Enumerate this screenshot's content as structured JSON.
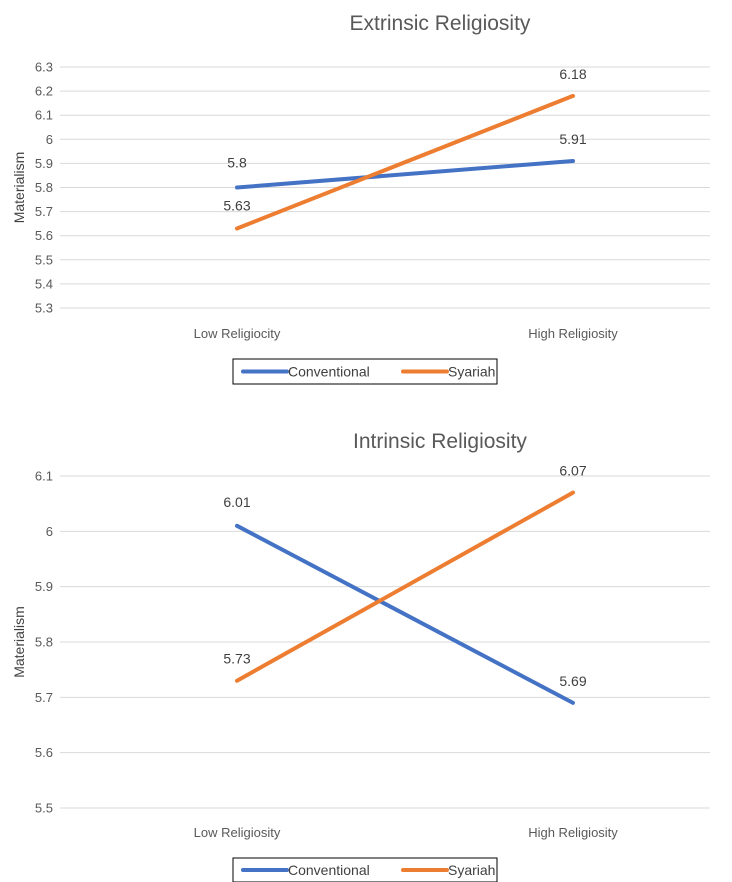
{
  "chart_data": [
    {
      "type": "line",
      "title": "Extrinsic Religiosity",
      "ylabel": "Materialism",
      "xlabel": "",
      "categories": [
        "Low Religiocity",
        "High Religiosity"
      ],
      "ylim": [
        5.3,
        6.3
      ],
      "yticks": [
        5.3,
        5.4,
        5.5,
        5.6,
        5.7,
        5.8,
        5.9,
        6,
        6.1,
        6.2,
        6.3
      ],
      "grid": true,
      "legend_position": "bottom",
      "series": [
        {
          "name": "Conventional",
          "values": [
            5.8,
            5.91
          ],
          "color": "#4472C4"
        },
        {
          "name": "Syariah",
          "values": [
            5.63,
            6.18
          ],
          "color": "#ED7D31"
        }
      ]
    },
    {
      "type": "line",
      "title": "Intrinsic Religiosity",
      "ylabel": "Materialism",
      "xlabel": "",
      "categories": [
        "Low Religiosity",
        "High Religiosity"
      ],
      "ylim": [
        5.5,
        6.1
      ],
      "yticks": [
        5.5,
        5.6,
        5.7,
        5.8,
        5.9,
        6,
        6.1
      ],
      "grid": true,
      "legend_position": "bottom",
      "series": [
        {
          "name": "Conventional",
          "values": [
            6.01,
            5.69
          ],
          "color": "#4472C4"
        },
        {
          "name": "Syariah",
          "values": [
            5.73,
            6.07
          ],
          "color": "#ED7D31"
        }
      ]
    }
  ]
}
